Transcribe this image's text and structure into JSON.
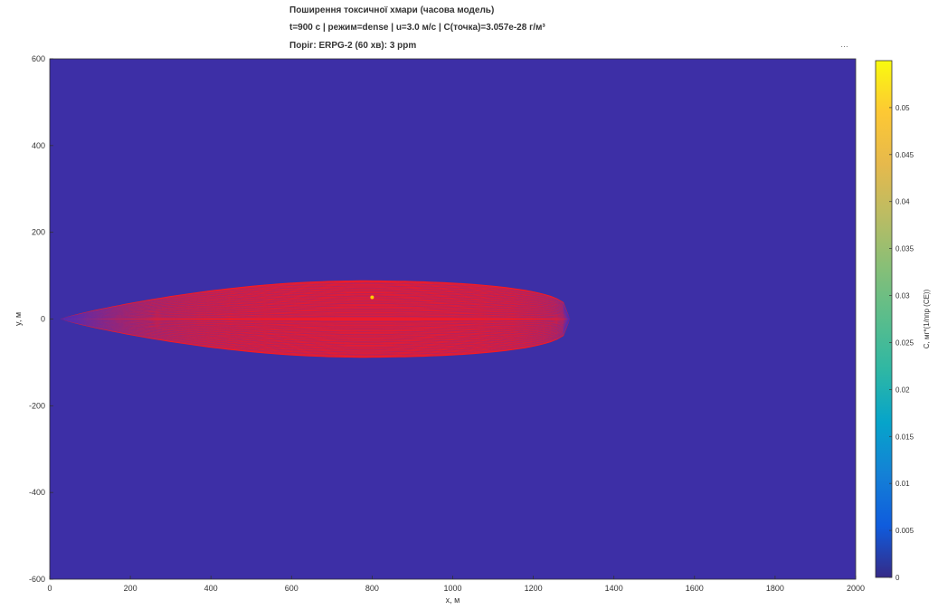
{
  "chart_data": {
    "type": "heatmap",
    "title_lines": [
      "Поширення токсичної хмари (часова модель)",
      "t=900 с | режим=dense | u=3.0 м/с | C(точка)=3.057e-28 г/м³",
      "Поріг: ERPG-2 (60 хв): 3 ppm"
    ],
    "xlabel": "x, м",
    "ylabel": "y, м",
    "colorbar_label": "C, мг*(1/ппр (CE))",
    "xlim": [
      0,
      2000
    ],
    "ylim": [
      -600,
      600
    ],
    "xticks": [
      0,
      200,
      400,
      600,
      800,
      1000,
      1200,
      1400,
      1600,
      1800,
      2000
    ],
    "yticks": [
      -600,
      -400,
      -200,
      0,
      200,
      400,
      600
    ],
    "colorbar": {
      "range": [
        0,
        0.055
      ],
      "ticks": [
        0,
        0.005,
        0.01,
        0.015,
        0.02,
        0.025,
        0.03,
        0.035,
        0.04,
        0.045,
        0.05
      ],
      "tick_labels": [
        "0",
        "0.005",
        "0.01",
        "0.015",
        "0.02",
        "0.025",
        "0.03",
        "0.035",
        "0.04",
        "0.045",
        "0.05"
      ],
      "colormap": "parula"
    },
    "background_color": "#3d2fa6",
    "plume": {
      "shape": "ellipse-contour",
      "x_start": 30,
      "x_end": 1290,
      "x_max_width": 780,
      "half_width": 88,
      "center_y": 0,
      "color": "#ff1a1a",
      "contour_count": 45
    },
    "source_point": {
      "x": 800,
      "y": 50,
      "color": "#ffd000"
    }
  },
  "ui": {
    "more_icon": "…"
  }
}
